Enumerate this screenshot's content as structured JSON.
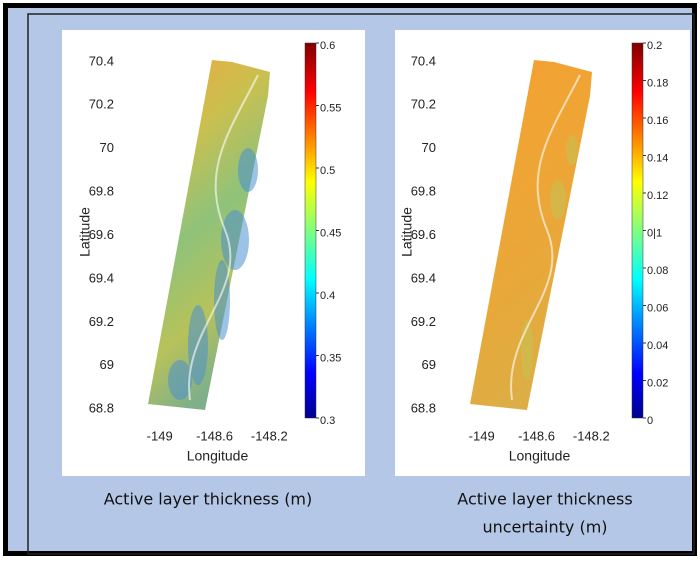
{
  "chart_data": [
    {
      "type": "map",
      "xlabel": "Longitude",
      "ylabel": "Latitude",
      "xlim": [
        -149.1,
        -148.1
      ],
      "xticks": [
        -149,
        -148.6,
        -148.2
      ],
      "ylim": [
        68.75,
        70.45
      ],
      "yticks": [
        68.8,
        69,
        69.2,
        69.4,
        69.6,
        69.8,
        70,
        70.2,
        70.4
      ],
      "colorbar": {
        "lim": [
          0.3,
          0.6
        ],
        "ticks": [
          0.3,
          0.35,
          0.4,
          0.45,
          0.5,
          0.55,
          0.6
        ]
      },
      "caption": [
        "Active layer thickness (m)"
      ]
    },
    {
      "type": "map",
      "xlabel": "Longitude",
      "ylabel": "Latitude",
      "xlim": [
        -149.1,
        -148.1
      ],
      "xticks": [
        -149,
        -148.6,
        -148.2
      ],
      "ylim": [
        68.75,
        70.45
      ],
      "yticks": [
        68.8,
        69,
        69.2,
        69.4,
        69.6,
        69.8,
        70,
        70.2,
        70.4
      ],
      "colorbar": {
        "lim": [
          0,
          0.2
        ],
        "ticks": [
          0,
          0.02,
          0.04,
          0.06,
          0.08,
          {
            "value": 0.1,
            "label": "0|1"
          },
          0.12,
          0.14,
          0.16,
          0.18,
          0.2
        ]
      },
      "caption": [
        "Active layer thickness",
        "uncertainty (m)"
      ]
    }
  ]
}
